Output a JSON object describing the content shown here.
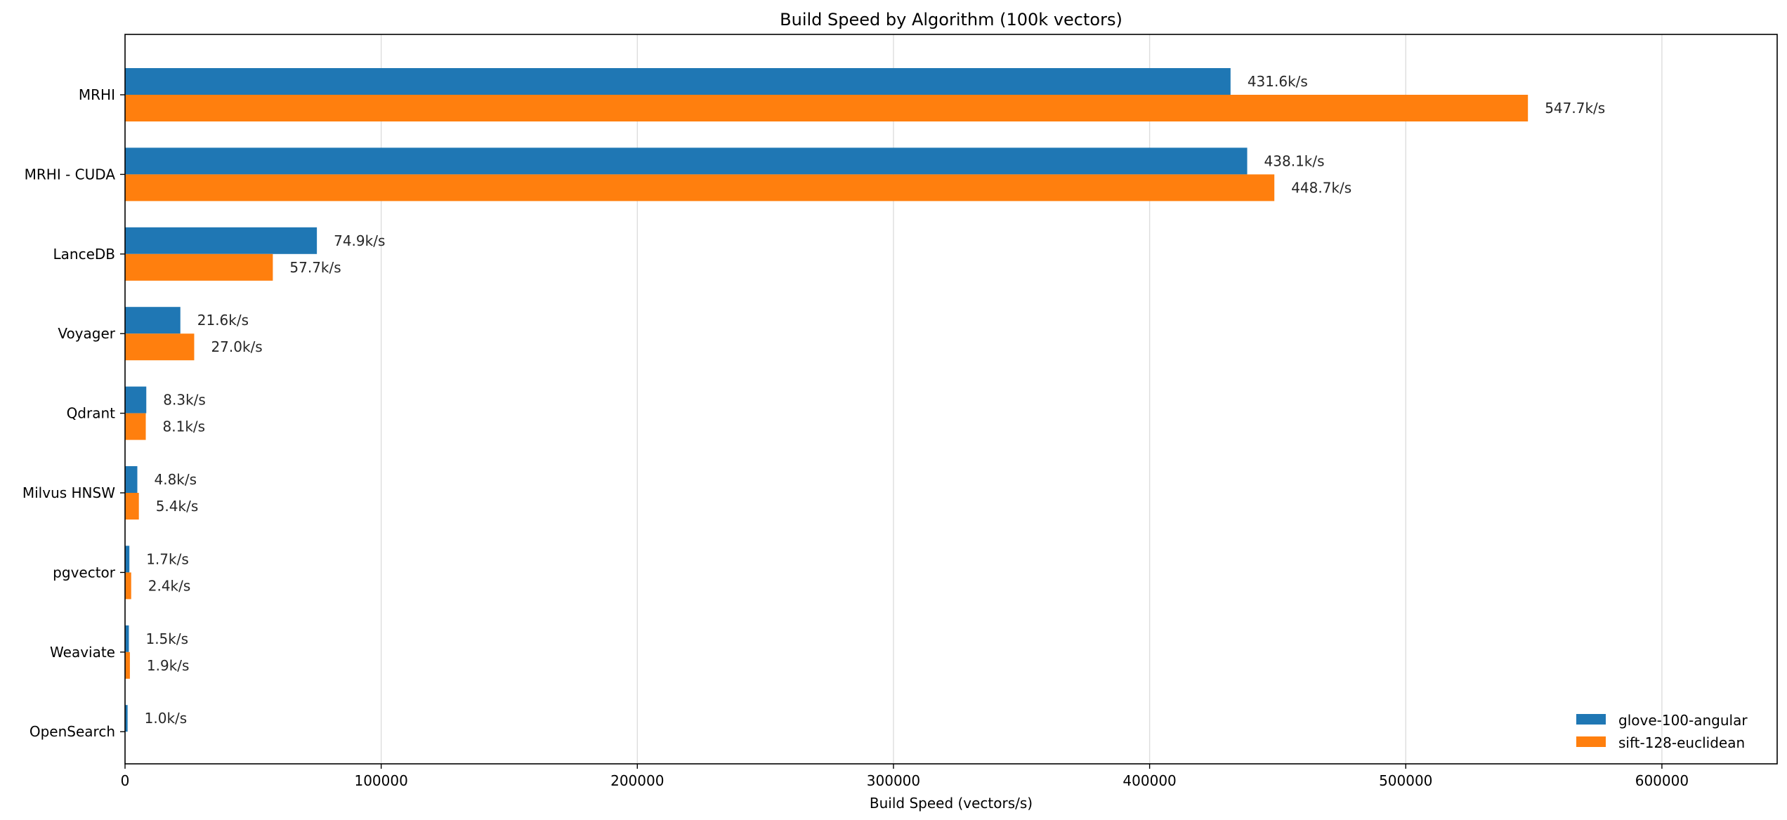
{
  "chart_data": {
    "type": "bar",
    "orientation": "horizontal",
    "title": "Build Speed by Algorithm (100k vectors)",
    "xlabel": "Build Speed (vectors/s)",
    "ylabel": "",
    "xlim": [
      0,
      645000
    ],
    "xticks": [
      0,
      100000,
      200000,
      300000,
      400000,
      500000,
      600000
    ],
    "xtick_labels": [
      "0",
      "100000",
      "200000",
      "300000",
      "400000",
      "500000",
      "600000"
    ],
    "grid": "vertical",
    "legend_position": "bottom-right",
    "categories": [
      "MRHI",
      "MRHI - CUDA",
      "LanceDB",
      "Voyager",
      "Qdrant",
      "Milvus HNSW",
      "pgvector",
      "Weaviate",
      "OpenSearch"
    ],
    "series": [
      {
        "name": "glove-100-angular",
        "color": "#1f77b4",
        "values": [
          431600,
          438100,
          74900,
          21600,
          8300,
          4800,
          1700,
          1500,
          1000
        ],
        "labels": [
          "431.6k/s",
          "438.1k/s",
          "74.9k/s",
          "21.6k/s",
          "8.3k/s",
          "4.8k/s",
          "1.7k/s",
          "1.5k/s",
          "1.0k/s"
        ]
      },
      {
        "name": "sift-128-euclidean",
        "color": "#ff7f0e",
        "values": [
          547700,
          448700,
          57700,
          27000,
          8100,
          5400,
          2400,
          1900,
          null
        ],
        "labels": [
          "547.7k/s",
          "448.7k/s",
          "57.7k/s",
          "27.0k/s",
          "8.1k/s",
          "5.4k/s",
          "2.4k/s",
          "1.9k/s",
          ""
        ]
      }
    ]
  }
}
